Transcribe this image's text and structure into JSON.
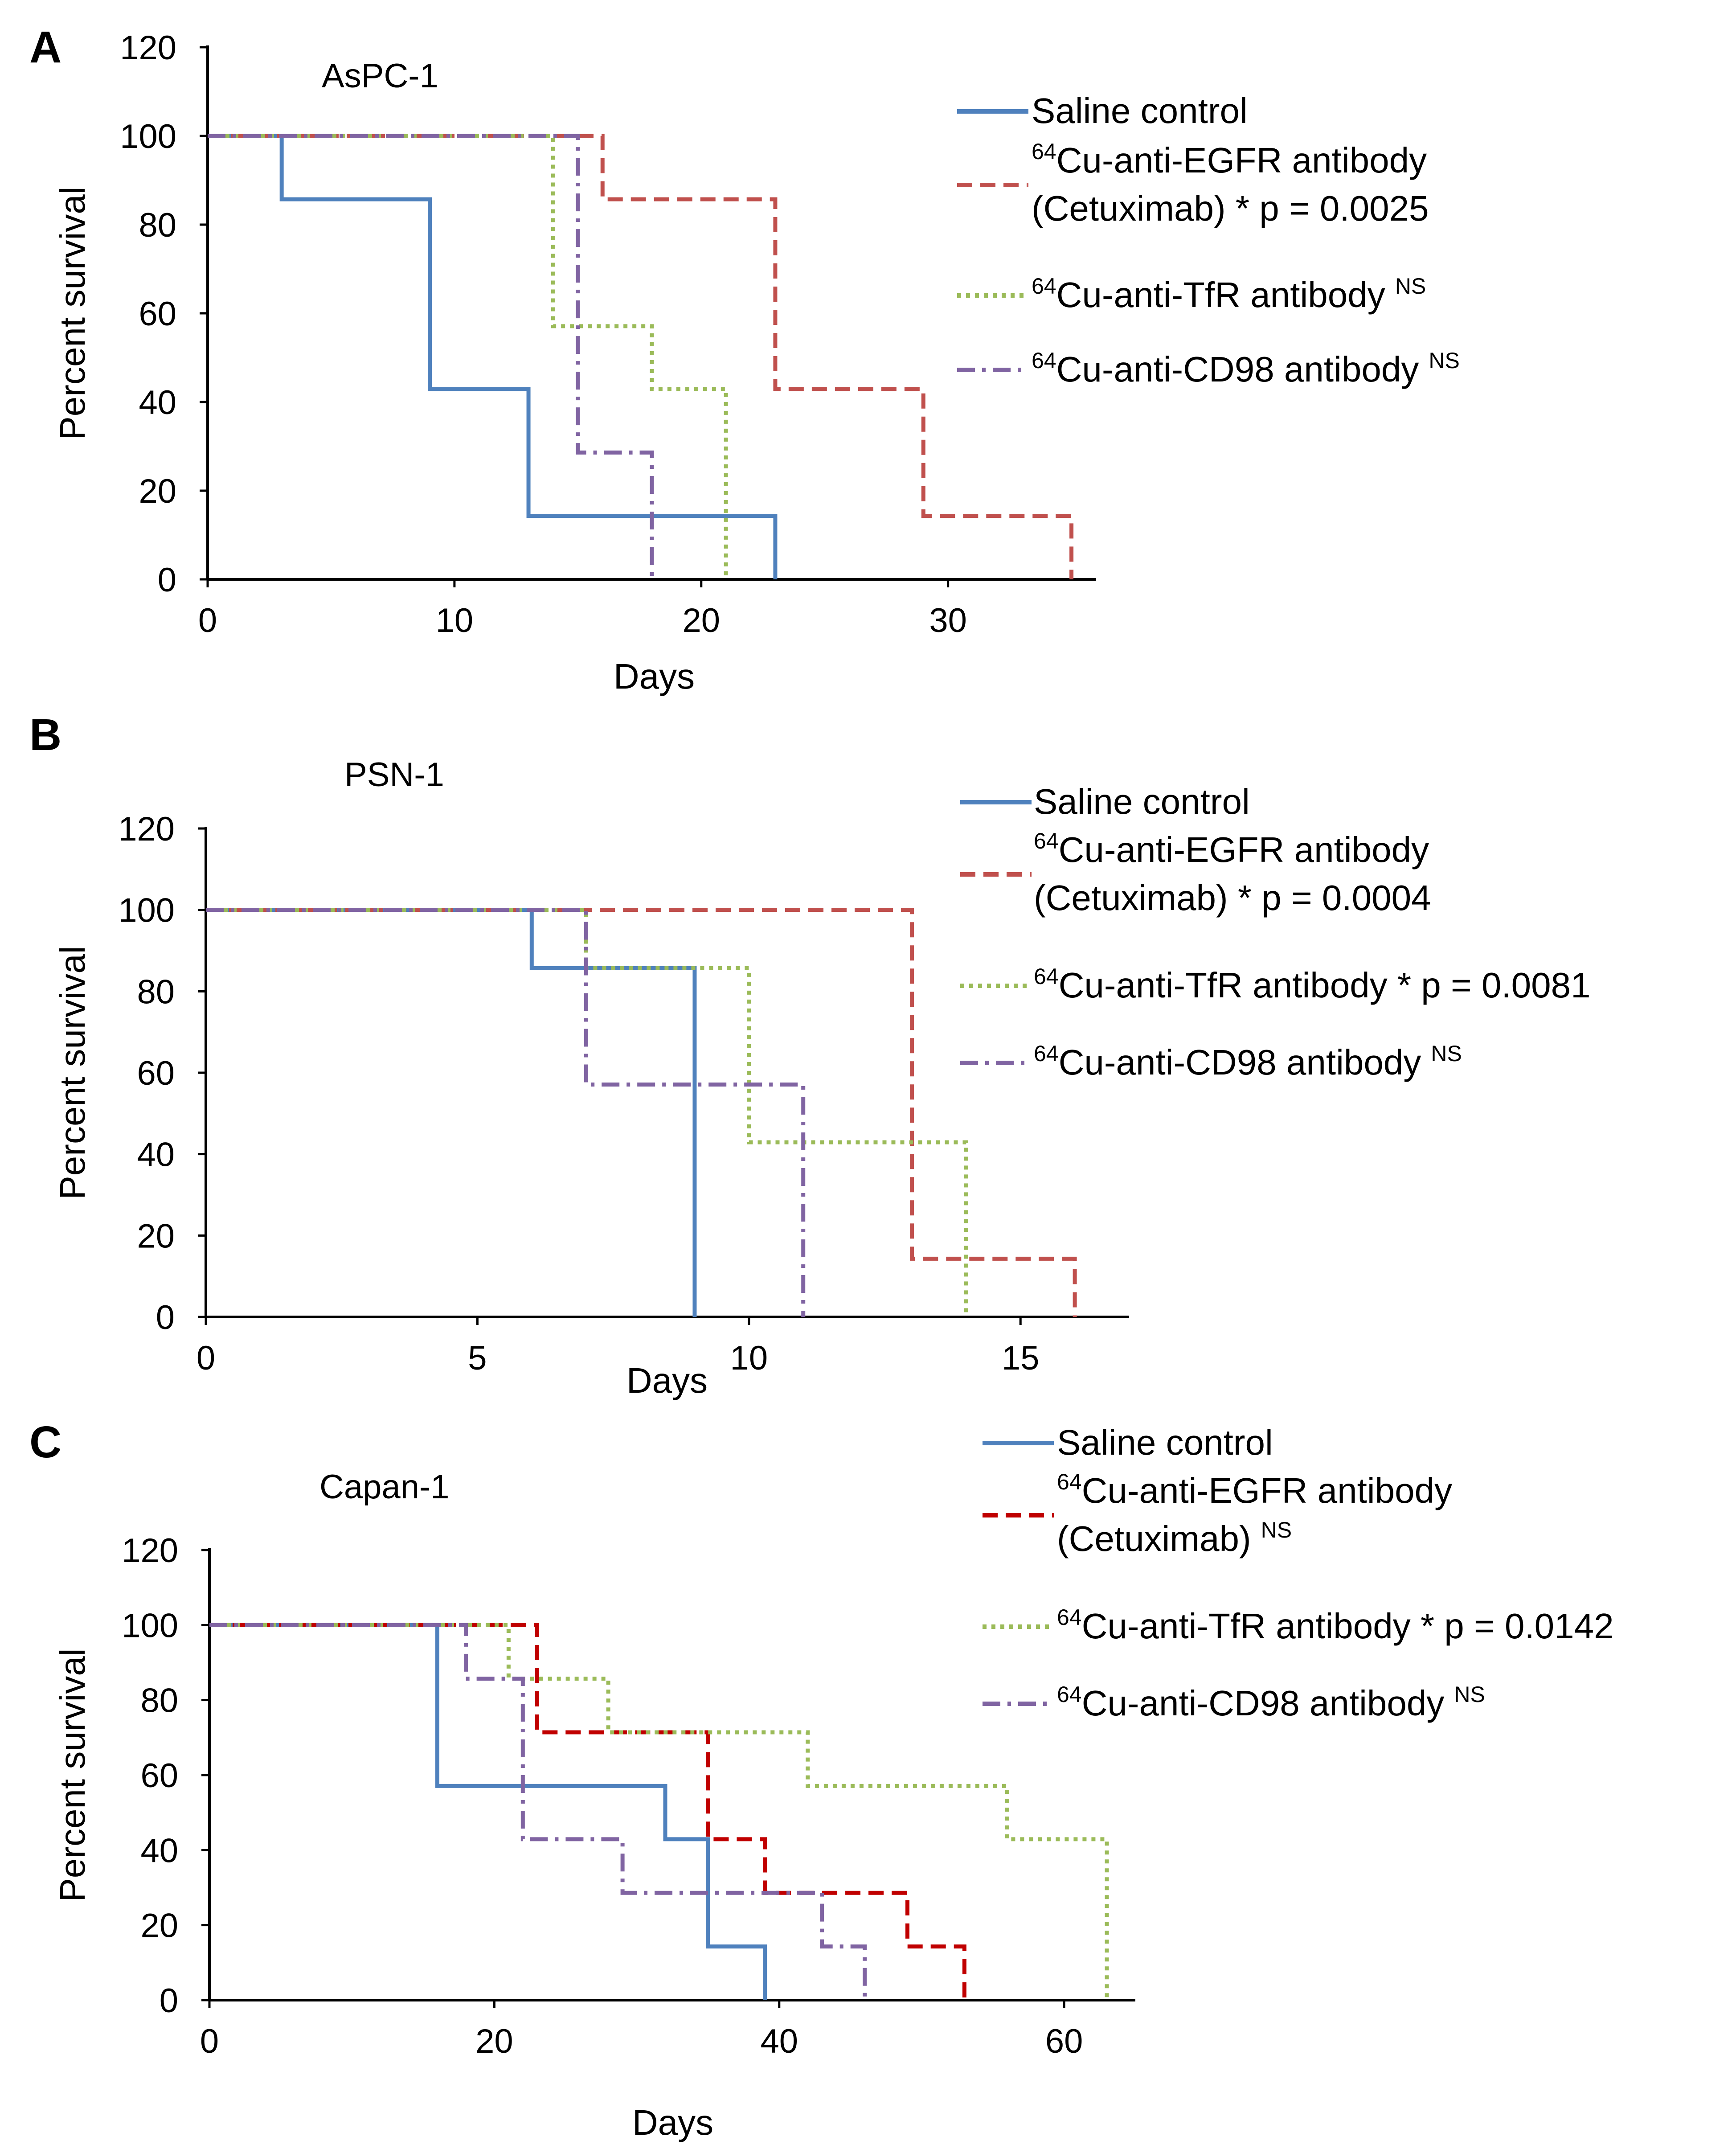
{
  "chart_data": [
    {
      "type": "line",
      "panel": "A",
      "cell_line": "AsPC-1",
      "xlabel": "Days",
      "ylabel": "Percent survival",
      "xlim": [
        0,
        36
      ],
      "ylim": [
        0,
        120
      ],
      "xticks": [
        0,
        10,
        20,
        30
      ],
      "yticks": [
        0,
        20,
        40,
        60,
        80,
        100,
        120
      ],
      "series": [
        {
          "name": "Saline control",
          "color": "#4f81bd",
          "dash": "solid",
          "x": [
            0,
            3,
            9,
            13,
            23
          ],
          "y": [
            100,
            85.7,
            42.9,
            14.3,
            0
          ],
          "legend": {
            "lines": [
              {
                "pre": "",
                "main": "Saline control",
                "sup": ""
              }
            ]
          }
        },
        {
          "name": "64Cu-anti-EGFR antibody (Cetuximab) * p = 0.0025",
          "color": "#c0504d",
          "dash": "dashed",
          "x": [
            0,
            16,
            23,
            29,
            35
          ],
          "y": [
            100,
            85.7,
            42.9,
            14.3,
            0
          ],
          "legend": {
            "lines": [
              {
                "pre": "64",
                "main": "Cu-anti-EGFR antibody",
                "sup": ""
              },
              {
                "pre": "",
                "main": "(Cetuximab) * p = 0.0025",
                "sup": ""
              }
            ]
          }
        },
        {
          "name": "64Cu-anti-TfR antibody NS",
          "color": "#9bbb59",
          "dash": "dotted",
          "x": [
            0,
            14,
            18,
            21
          ],
          "y": [
            100,
            57.1,
            42.9,
            0
          ],
          "legend": {
            "lines": [
              {
                "pre": "64",
                "main": "Cu-anti-TfR antibody",
                "sup": "NS"
              }
            ]
          }
        },
        {
          "name": "64Cu-anti-CD98 antibody NS",
          "color": "#8064a2",
          "dash": "dashdot",
          "x": [
            0,
            15,
            18
          ],
          "y": [
            100,
            28.6,
            0
          ],
          "legend": {
            "lines": [
              {
                "pre": "64",
                "main": "Cu-anti-CD98 antibody",
                "sup": "NS"
              }
            ]
          }
        }
      ]
    },
    {
      "type": "line",
      "panel": "B",
      "cell_line": "PSN-1",
      "xlabel": "Days",
      "ylabel": "Percent survival",
      "xlim": [
        0,
        17
      ],
      "ylim": [
        0,
        120
      ],
      "xticks": [
        0,
        5,
        10,
        15
      ],
      "yticks": [
        0,
        20,
        40,
        60,
        80,
        100,
        120
      ],
      "series": [
        {
          "name": "Saline control",
          "color": "#4f81bd",
          "dash": "solid",
          "x": [
            0,
            6,
            9
          ],
          "y": [
            100,
            85.7,
            0
          ],
          "legend": {
            "lines": [
              {
                "pre": "",
                "main": "Saline control",
                "sup": ""
              }
            ]
          }
        },
        {
          "name": "64Cu-anti-EGFR antibody (Cetuximab) * p = 0.0004",
          "color": "#c0504d",
          "dash": "dashed",
          "x": [
            0,
            13,
            16
          ],
          "y": [
            100,
            14.3,
            0
          ],
          "legend": {
            "lines": [
              {
                "pre": "64",
                "main": "Cu-anti-EGFR antibody",
                "sup": ""
              },
              {
                "pre": "",
                "main": "(Cetuximab) * p = 0.0004",
                "sup": ""
              }
            ]
          }
        },
        {
          "name": "64Cu-anti-TfR antibody * p = 0.0081",
          "color": "#9bbb59",
          "dash": "dotted",
          "x": [
            0,
            7,
            10,
            14
          ],
          "y": [
            100,
            85.7,
            42.9,
            0
          ],
          "legend": {
            "lines": [
              {
                "pre": "64",
                "main": "Cu-anti-TfR antibody * p = 0.0081",
                "sup": ""
              }
            ]
          }
        },
        {
          "name": "64Cu-anti-CD98 antibody NS",
          "color": "#8064a2",
          "dash": "dashdot",
          "x": [
            0,
            7,
            11
          ],
          "y": [
            100,
            57.1,
            0
          ],
          "legend": {
            "lines": [
              {
                "pre": "64",
                "main": "Cu-anti-CD98 antibody",
                "sup": "NS"
              }
            ]
          }
        }
      ]
    },
    {
      "type": "line",
      "panel": "C",
      "cell_line": "Capan-1",
      "xlabel": "Days",
      "ylabel": "Percent survival",
      "xlim": [
        0,
        65
      ],
      "ylim": [
        0,
        120
      ],
      "xticks": [
        0,
        20,
        40,
        60
      ],
      "yticks": [
        0,
        20,
        40,
        60,
        80,
        100,
        120
      ],
      "series": [
        {
          "name": "Saline control",
          "color": "#4f81bd",
          "dash": "solid",
          "x": [
            0,
            16,
            32,
            35,
            39
          ],
          "y": [
            100,
            57.1,
            42.9,
            14.3,
            0
          ],
          "legend": {
            "lines": [
              {
                "pre": "",
                "main": "Saline control",
                "sup": ""
              }
            ]
          }
        },
        {
          "name": "64Cu-anti-EGFR antibody (Cetuximab) NS",
          "color": "#c00000",
          "dash": "dashed",
          "x": [
            0,
            23,
            35,
            39,
            49,
            53
          ],
          "y": [
            100,
            71.4,
            42.9,
            28.6,
            14.3,
            0
          ],
          "legend": {
            "lines": [
              {
                "pre": "64",
                "main": "Cu-anti-EGFR antibody",
                "sup": ""
              },
              {
                "pre": "",
                "main": "(Cetuximab)",
                "sup": "NS"
              }
            ]
          }
        },
        {
          "name": "64Cu-anti-TfR antibody * p = 0.0142",
          "color": "#9bbb59",
          "dash": "dotted",
          "x": [
            0,
            21,
            28,
            42,
            56,
            63
          ],
          "y": [
            100,
            85.7,
            71.4,
            57.1,
            42.9,
            0
          ],
          "legend": {
            "lines": [
              {
                "pre": "64",
                "main": "Cu-anti-TfR antibody * p = 0.0142",
                "sup": ""
              }
            ]
          }
        },
        {
          "name": "64Cu-anti-CD98 antibody NS",
          "color": "#8064a2",
          "dash": "dashdot",
          "x": [
            0,
            18,
            22,
            29,
            43,
            46
          ],
          "y": [
            100,
            85.7,
            42.9,
            28.6,
            14.3,
            0
          ],
          "legend": {
            "lines": [
              {
                "pre": "64",
                "main": "Cu-anti-CD98 antibody",
                "sup": "NS"
              }
            ]
          }
        }
      ]
    }
  ]
}
